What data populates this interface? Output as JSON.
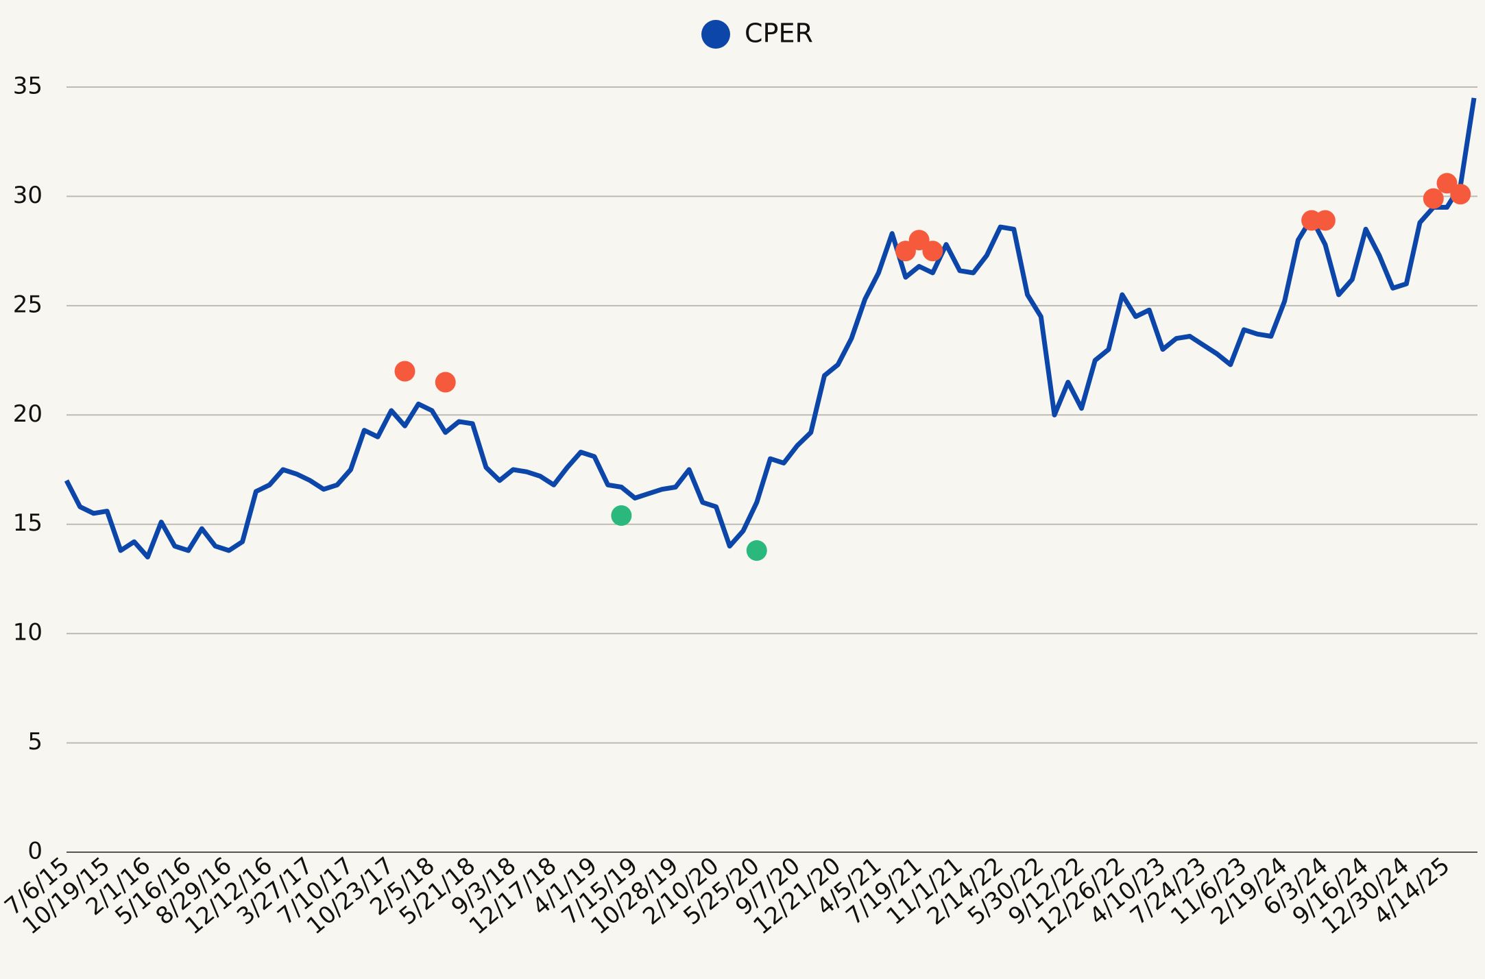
{
  "chart_data": {
    "type": "line",
    "categories": [
      "7/6/15",
      null,
      null,
      "10/19/15",
      null,
      null,
      "2/1/16",
      null,
      null,
      "5/16/16",
      null,
      null,
      "8/29/16",
      null,
      null,
      "12/12/16",
      null,
      null,
      "3/27/17",
      null,
      null,
      "7/10/17",
      null,
      null,
      "10/23/17",
      null,
      null,
      "2/5/18",
      null,
      null,
      "5/21/18",
      null,
      null,
      "9/3/18",
      null,
      null,
      "12/17/18",
      null,
      null,
      "4/1/19",
      null,
      null,
      "7/15/19",
      null,
      null,
      "10/28/19",
      null,
      null,
      "2/10/20",
      null,
      null,
      "5/25/20",
      null,
      null,
      "9/7/20",
      null,
      null,
      "12/21/20",
      null,
      null,
      "4/5/21",
      null,
      null,
      "7/19/21",
      null,
      null,
      "11/1/21",
      null,
      null,
      "2/14/22",
      null,
      null,
      "5/30/22",
      null,
      null,
      "9/12/22",
      null,
      null,
      "12/26/22",
      null,
      null,
      "4/10/23",
      null,
      null,
      "7/24/23",
      null,
      null,
      "11/6/23",
      null,
      null,
      "2/19/24",
      null,
      null,
      "6/3/24",
      null,
      null,
      "9/16/24",
      null,
      null,
      "12/30/24",
      null,
      null,
      "4/14/25",
      null,
      null
    ],
    "series": [
      {
        "name": "CPER",
        "color": "#0b46a8",
        "values": [
          17.0,
          15.8,
          15.5,
          15.6,
          13.8,
          14.2,
          13.5,
          15.1,
          14.0,
          13.8,
          14.8,
          14.0,
          13.8,
          14.2,
          16.5,
          16.8,
          17.5,
          17.3,
          17.0,
          16.6,
          16.8,
          17.5,
          19.3,
          19.0,
          20.2,
          19.5,
          20.5,
          20.2,
          19.2,
          19.7,
          19.6,
          17.6,
          17.0,
          17.5,
          17.4,
          17.2,
          16.8,
          17.6,
          18.3,
          18.1,
          16.8,
          16.7,
          16.2,
          16.4,
          16.6,
          16.7,
          17.5,
          16.0,
          15.8,
          14.0,
          14.7,
          16.0,
          18.0,
          17.8,
          18.6,
          19.2,
          21.8,
          22.3,
          23.5,
          25.3,
          26.5,
          28.3,
          26.3,
          26.8,
          26.5,
          27.8,
          26.6,
          26.5,
          27.3,
          28.6,
          28.5,
          25.5,
          24.5,
          20.0,
          21.5,
          20.3,
          22.5,
          23.0,
          25.5,
          24.5,
          24.8,
          23.0,
          23.5,
          23.6,
          23.2,
          22.8,
          22.3,
          23.9,
          23.7,
          23.6,
          25.2,
          28.0,
          29.0,
          27.8,
          25.5,
          26.2,
          28.5,
          27.3,
          25.8,
          26.0,
          28.8,
          29.5,
          29.5,
          30.5,
          34.5
        ]
      },
      {
        "type": "scatter",
        "color": "#f65a3c",
        "values": [
          null,
          null,
          null,
          null,
          null,
          null,
          null,
          null,
          null,
          null,
          null,
          null,
          null,
          null,
          null,
          null,
          null,
          null,
          null,
          null,
          null,
          null,
          null,
          null,
          null,
          22.0,
          null,
          null,
          21.5,
          null,
          null,
          null,
          null,
          null,
          null,
          null,
          null,
          null,
          null,
          null,
          null,
          null,
          null,
          null,
          null,
          null,
          null,
          null,
          null,
          null,
          null,
          null,
          null,
          null,
          null,
          null,
          null,
          null,
          null,
          null,
          null,
          null,
          27.5,
          28.0,
          27.5,
          null,
          null,
          null,
          null,
          null,
          null,
          null,
          null,
          null,
          null,
          null,
          null,
          null,
          null,
          null,
          null,
          null,
          null,
          null,
          null,
          null,
          null,
          null,
          null,
          null,
          null,
          null,
          28.9,
          28.9,
          null,
          null,
          null,
          null,
          null,
          null,
          null,
          29.9,
          30.6,
          30.1,
          null
        ]
      },
      {
        "type": "scatter",
        "color": "#2bb87c",
        "values": [
          null,
          null,
          null,
          null,
          null,
          null,
          null,
          null,
          null,
          null,
          null,
          null,
          null,
          null,
          null,
          null,
          null,
          null,
          null,
          null,
          null,
          null,
          null,
          null,
          null,
          null,
          null,
          null,
          null,
          null,
          null,
          null,
          null,
          null,
          null,
          null,
          null,
          null,
          null,
          null,
          null,
          15.4,
          null,
          null,
          null,
          null,
          null,
          null,
          null,
          null,
          null,
          13.8,
          null,
          null,
          null,
          null,
          null,
          null,
          null,
          null,
          null,
          null,
          null,
          null,
          null,
          null,
          null,
          null,
          null,
          null,
          null,
          null,
          null,
          null,
          null,
          null,
          null,
          null,
          null,
          null,
          null,
          null,
          null,
          null,
          null,
          null,
          null,
          null,
          null,
          null,
          null,
          null,
          null,
          null,
          null,
          null,
          null,
          null,
          null,
          null,
          null,
          null,
          null,
          null,
          null
        ]
      }
    ],
    "ylim": [
      0,
      35
    ],
    "yticks": [
      0,
      5,
      10,
      15,
      20,
      25,
      30,
      35
    ],
    "grid": true,
    "legend": "top"
  }
}
